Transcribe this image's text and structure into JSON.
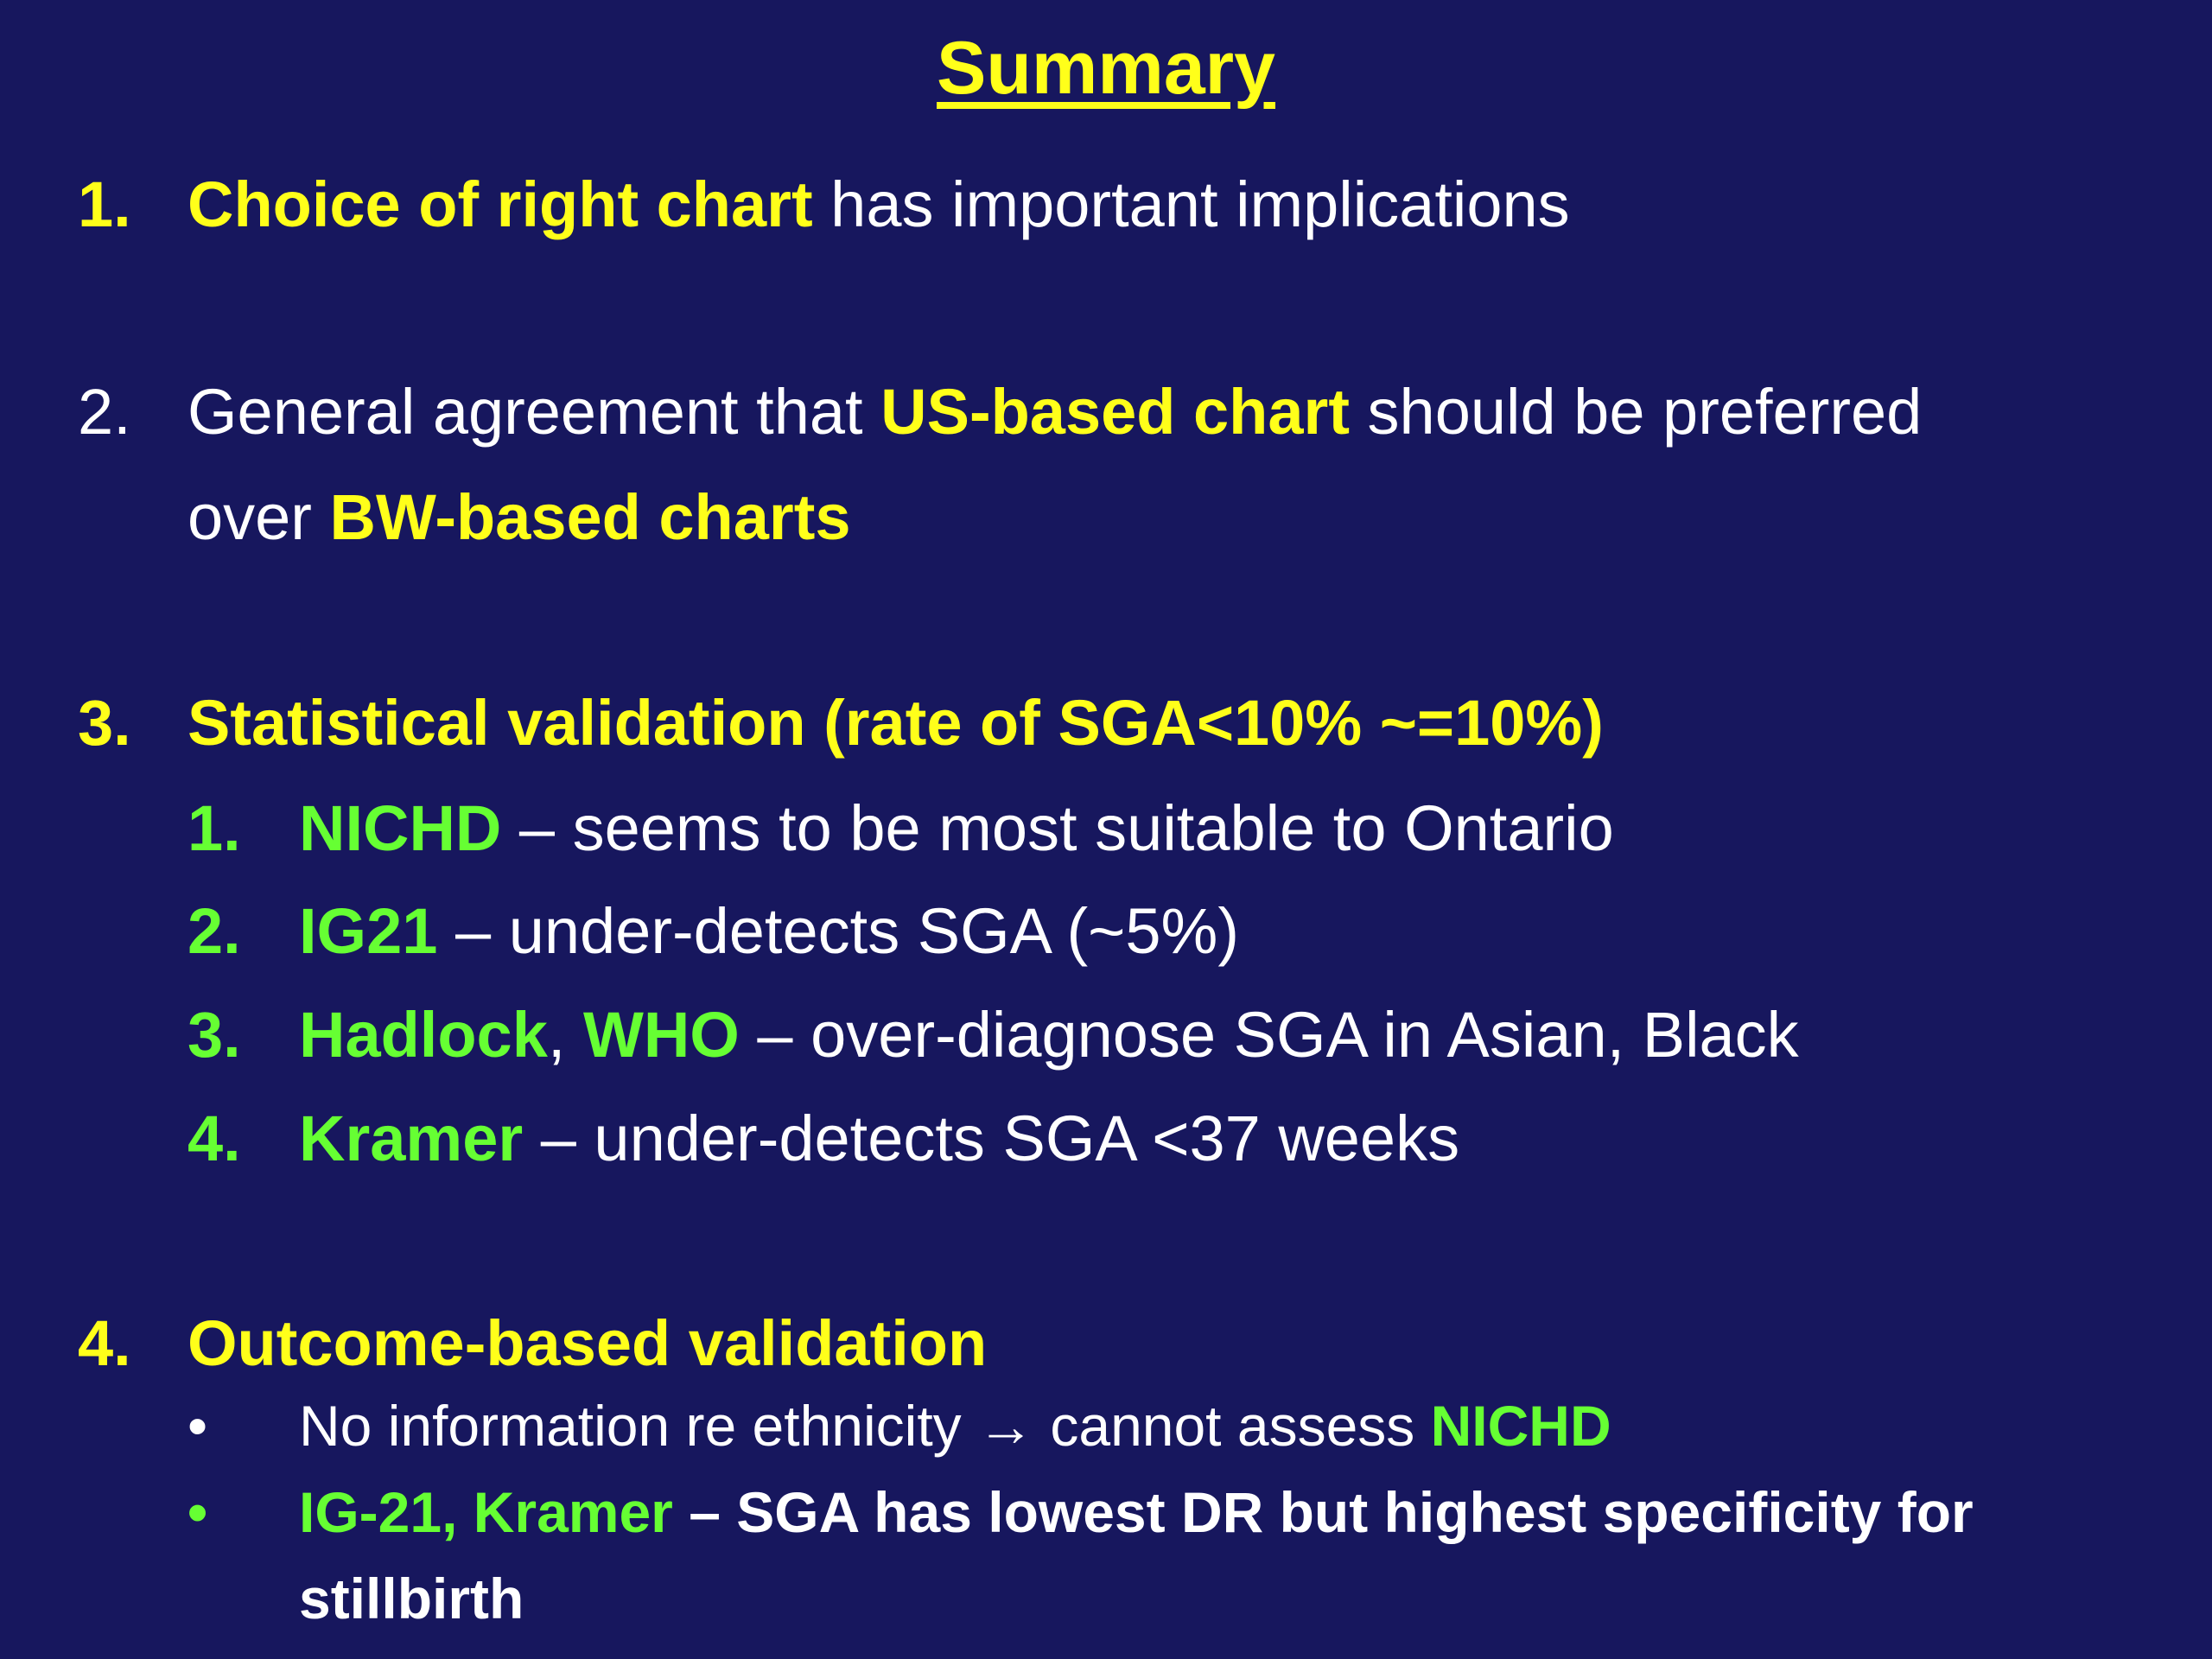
{
  "title": "Summary",
  "items": [
    {
      "number": "1.",
      "parts": [
        "Choice of right chart",
        "has important implications"
      ]
    },
    {
      "number": "2.",
      "parts": [
        "General agreement that",
        "US-based chart",
        "should be preferred over",
        "BW-based charts"
      ]
    },
    {
      "number": "3.",
      "parts": [
        "Statistical validation (rate of SGA<10% ~=10%)"
      ],
      "subitems": [
        {
          "number": "1.",
          "parts": [
            "NICHD",
            "– seems to be most suitable to Ontario"
          ]
        },
        {
          "number": "2.",
          "parts": [
            "IG21",
            "– under-detects SGA (~5%)"
          ]
        },
        {
          "number": "3.",
          "parts": [
            "Hadlock",
            ",",
            "WHO",
            "– over-diagnose SGA in Asian, Black"
          ]
        },
        {
          "number": "4.",
          "parts": [
            "Kramer",
            "– under-detects SGA <37 weeks"
          ]
        }
      ]
    },
    {
      "number": "4.",
      "parts": [
        "Outcome-based validation"
      ],
      "bullets": [
        {
          "marker": "•",
          "parts": [
            "No information re ethnicity",
            "→",
            "cannot assess",
            "NICHD"
          ]
        },
        {
          "marker": "•",
          "parts": [
            "IG-21, Kramer",
            "– SGA has lowest DR but highest specificity for stillbirth"
          ]
        }
      ]
    }
  ]
}
